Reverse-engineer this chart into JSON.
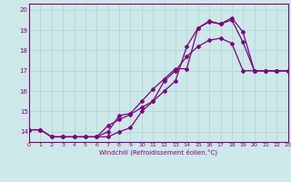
{
  "xlabel": "Windchill (Refroidissement éolien,°C)",
  "ylabel": "",
  "background_color": "#cce8e8",
  "line_color": "#800080",
  "xlim": [
    0,
    23
  ],
  "ylim": [
    13.5,
    20.3
  ],
  "yticks": [
    14,
    15,
    16,
    17,
    18,
    19,
    20
  ],
  "xticks": [
    0,
    1,
    2,
    3,
    4,
    5,
    6,
    7,
    8,
    9,
    10,
    11,
    12,
    13,
    14,
    15,
    16,
    17,
    18,
    19,
    20,
    21,
    22,
    23
  ],
  "series": [
    {
      "x": [
        0,
        1,
        2,
        3,
        4,
        5,
        6,
        7,
        8,
        9,
        10,
        11,
        12,
        13,
        14,
        15,
        16,
        17,
        18,
        19,
        20,
        21,
        22,
        23
      ],
      "y": [
        14.1,
        14.1,
        13.75,
        13.75,
        13.75,
        13.75,
        13.75,
        14.0,
        14.8,
        14.9,
        15.5,
        16.1,
        16.6,
        17.1,
        17.1,
        19.1,
        19.45,
        19.3,
        19.6,
        18.9,
        17.0,
        17.0,
        17.0,
        17.0
      ]
    },
    {
      "x": [
        0,
        1,
        2,
        3,
        4,
        5,
        6,
        7,
        8,
        9,
        10,
        11,
        12,
        13,
        14,
        15,
        16,
        17,
        18,
        19,
        20,
        21,
        22,
        23
      ],
      "y": [
        14.1,
        14.1,
        13.75,
        13.75,
        13.75,
        13.75,
        13.75,
        14.3,
        14.6,
        14.85,
        15.2,
        15.5,
        16.0,
        16.5,
        18.2,
        19.1,
        19.4,
        19.3,
        19.5,
        18.4,
        17.0,
        17.0,
        17.0,
        17.0
      ]
    },
    {
      "x": [
        0,
        1,
        2,
        3,
        4,
        5,
        6,
        7,
        8,
        9,
        10,
        11,
        12,
        13,
        14,
        15,
        16,
        17,
        18,
        19,
        20,
        21,
        22,
        23
      ],
      "y": [
        14.1,
        14.1,
        13.75,
        13.75,
        13.75,
        13.75,
        13.75,
        13.75,
        14.0,
        14.2,
        15.0,
        15.5,
        16.5,
        17.0,
        17.7,
        18.2,
        18.5,
        18.6,
        18.35,
        17.0,
        17.0,
        17.0,
        17.0,
        17.0
      ]
    }
  ],
  "grid_color": "#aad4d4",
  "marker": "D",
  "marker_size": 2.0,
  "linewidth": 0.9
}
